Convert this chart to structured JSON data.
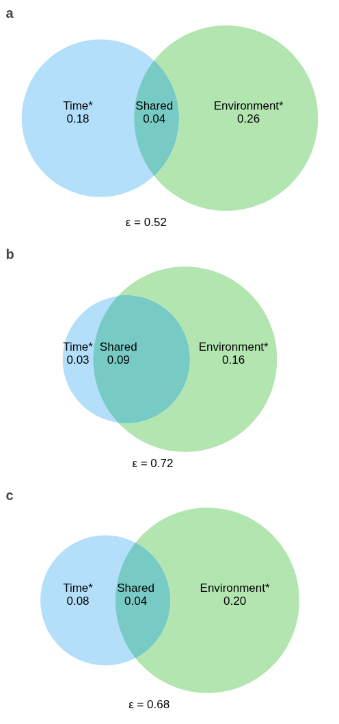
{
  "chart_data": [
    {
      "type": "other",
      "title": "a",
      "categories": [
        "Time*",
        "Shared",
        "Environment*"
      ],
      "values": [
        0.18,
        0.04,
        0.26
      ],
      "value_labels": [
        "0.18",
        "0.04",
        "0.26"
      ],
      "colors": [
        "#b3dffa",
        "#78cbc4",
        "#b3e5b0"
      ],
      "annotations": [
        "ε = 0.52"
      ]
    },
    {
      "type": "other",
      "title": "b",
      "categories": [
        "Time*",
        "Shared",
        "Environment*"
      ],
      "values": [
        0.03,
        0.09,
        0.16
      ],
      "value_labels": [
        "0.03",
        "0.09",
        "0.16"
      ],
      "colors": [
        "#b3dffa",
        "#78cbc4",
        "#b3e5b0"
      ],
      "annotations": [
        "ε = 0.72"
      ]
    },
    {
      "type": "other",
      "title": "c",
      "categories": [
        "Time*",
        "Shared",
        "Environment*"
      ],
      "values": [
        0.08,
        0.04,
        0.2
      ],
      "value_labels": [
        "0.08",
        "0.04",
        "0.20"
      ],
      "colors": [
        "#b3dffa",
        "#78cbc4",
        "#b3e5b0"
      ],
      "annotations": [
        "ε = 0.68"
      ]
    }
  ]
}
